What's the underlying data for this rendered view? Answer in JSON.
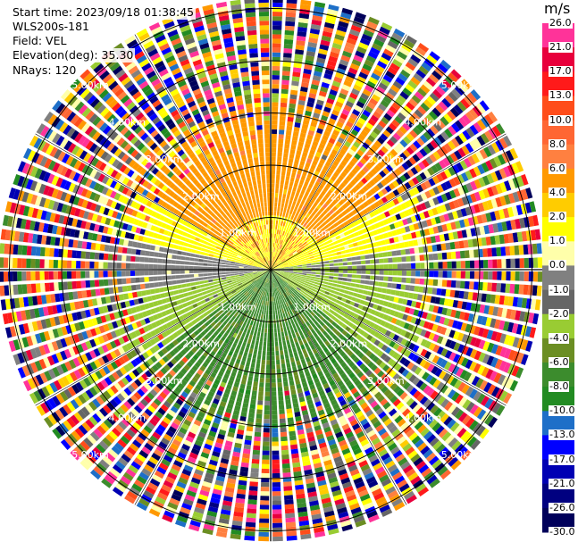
{
  "header": {
    "start_time": "Start time: 2023/09/18 01:38:45",
    "instrument": "WLS200s-181",
    "field": "Field: VEL",
    "elevation": "Elevation(deg): 35.30",
    "nrays": "NRays: 120"
  },
  "chart_data": {
    "type": "heatmap",
    "subtype": "polar-ppi",
    "field": "VEL",
    "units": "m/s",
    "n_rays": 120,
    "elevation_deg": 35.3,
    "range_rings_km": [
      1.0,
      2.0,
      3.0,
      4.0,
      5.0
    ],
    "ring_labels": [
      "1.00km",
      "2.00km",
      "3.00km",
      "4.00km",
      "5.00km"
    ],
    "colorbar": {
      "title": "m/s",
      "ticks": [
        "26.0",
        "21.0",
        "17.0",
        "13.0",
        "10.0",
        "8.0",
        "6.0",
        "4.0",
        "2.0",
        "1.0",
        "0.0",
        "-1.0",
        "-2.0",
        "-4.0",
        "-6.0",
        "-8.0",
        "-10.0",
        "-13.0",
        "-17.0",
        "-21.0",
        "-26.0",
        "-30.0"
      ],
      "colors": [
        "#ff3399",
        "#e8003c",
        "#ff1a1a",
        "#ff4d1a",
        "#ff6633",
        "#ff8040",
        "#ff9900",
        "#ffcc00",
        "#ffff00",
        "#ffffaa",
        "#808080",
        "#666666",
        "#99cc33",
        "#6b8e23",
        "#3c8c2d",
        "#228b22",
        "#1e6fc8",
        "#0000ff",
        "#0000b3",
        "#000080",
        "#00005a"
      ]
    }
  }
}
